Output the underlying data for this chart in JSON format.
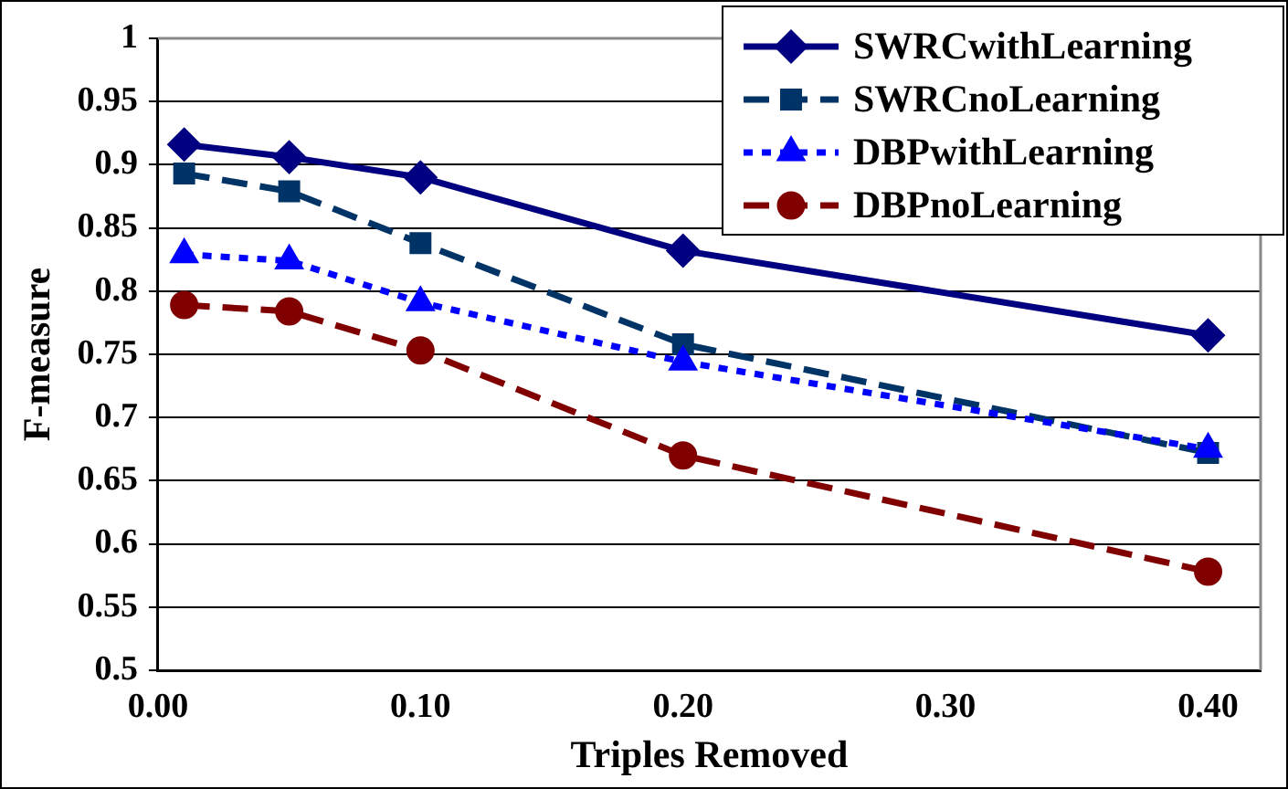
{
  "chart_data": {
    "type": "line",
    "xlabel": "Triples Removed",
    "ylabel": "F-measure",
    "x": [
      0.01,
      0.05,
      0.1,
      0.2,
      0.4
    ],
    "xlim": [
      0,
      0.42
    ],
    "xticks": [
      {
        "value": 0,
        "label": "0.00"
      },
      {
        "value": 0.1,
        "label": "0.10"
      },
      {
        "value": 0.2,
        "label": "0.20"
      },
      {
        "value": 0.3,
        "label": "0.30"
      },
      {
        "value": 0.4,
        "label": "0.40"
      }
    ],
    "ylim": [
      0.5,
      1
    ],
    "yticks": [
      0.5,
      0.55,
      0.6,
      0.65,
      0.7,
      0.75,
      0.8,
      0.85,
      0.9,
      0.95,
      1
    ],
    "grid": "y",
    "legend": "top right",
    "series": [
      {
        "name": "SWRCwithLearning",
        "color": "#000080",
        "values": [
          0.916,
          0.906,
          0.89,
          0.832,
          0.765
        ],
        "marker": "diamond",
        "line_style": "solid"
      },
      {
        "name": "SWRCnoLearning",
        "color": "#003366",
        "values": [
          0.893,
          0.879,
          0.838,
          0.758,
          0.672
        ],
        "marker": "square",
        "line_style": "dashed"
      },
      {
        "name": "DBPwithLearning",
        "color": "#0000ff",
        "values": [
          0.829,
          0.824,
          0.791,
          0.744,
          0.675
        ],
        "marker": "triangle",
        "line_style": "dotted"
      },
      {
        "name": "DBPnoLearning",
        "color": "#800000",
        "values": [
          0.789,
          0.784,
          0.753,
          0.67,
          0.578
        ],
        "marker": "circle",
        "line_style": "dashed"
      }
    ]
  }
}
